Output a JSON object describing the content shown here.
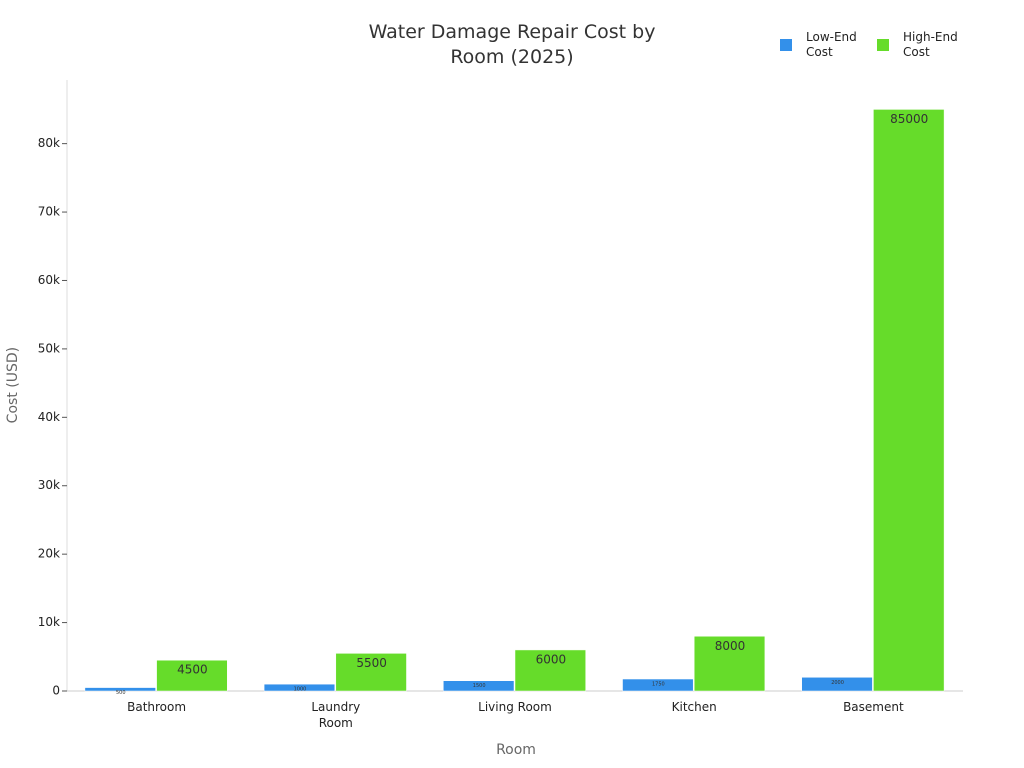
{
  "chart_data": {
    "type": "bar",
    "title": "Water Damage Repair Cost by Room (2025)",
    "x_label": "Room",
    "y_label": "Cost (USD)",
    "categories": [
      "Bathroom",
      "Laundry Room",
      "Living Room",
      "Kitchen",
      "Basement"
    ],
    "series": [
      {
        "name": "Low-End Cost",
        "color": "#3390ea",
        "values": [
          500,
          1000,
          1500,
          1750,
          2000
        ]
      },
      {
        "name": "High-End Cost",
        "color": "#66dc2a",
        "values": [
          4500,
          5500,
          6000,
          8000,
          85000
        ]
      }
    ],
    "ylim": [
      0,
      89300
    ],
    "yticks": [
      0,
      {
        "value": 10000,
        "label": "10k"
      },
      {
        "value": 20000,
        "label": "20k"
      },
      {
        "value": 30000,
        "label": "30k"
      },
      {
        "value": 40000,
        "label": "40k"
      },
      {
        "value": 50000,
        "label": "50k"
      },
      {
        "value": 60000,
        "label": "60k"
      },
      {
        "value": 70000,
        "label": "70k"
      },
      {
        "value": 80000,
        "label": "80k"
      }
    ],
    "legend": "top-right"
  }
}
